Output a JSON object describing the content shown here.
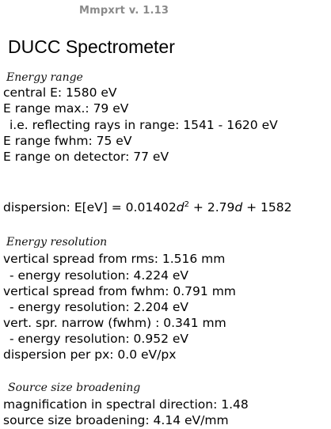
{
  "app": {
    "title": "Mmpxrt v. 1.13"
  },
  "page": {
    "title": "DUCC Spectrometer"
  },
  "energy_range": {
    "heading": "Energy range",
    "central": "central E:  1580 eV",
    "range_max": "E range max.:  79 eV",
    "reflecting": "i.e. reflecting rays in range:  1541 - 1620 eV",
    "fwhm": "E range fwhm:  75 eV",
    "on_detector": "E range on detector:  77 eV"
  },
  "dispersion": {
    "label": "dispersion: ",
    "lhs": "E[eV] = 0.01402",
    "var1": "d",
    "exp": "2",
    "mid": " + 2.79",
    "var2": "d",
    "tail": " + 1582"
  },
  "energy_resolution": {
    "heading": "Energy resolution",
    "vs_rms": "vertical spread from rms:  1.516 mm",
    "res_rms": "- energy resolution:  4.224 eV",
    "vs_fwhm": "vertical spread from fwhm:  0.791 mm",
    "res_fwhm": "- energy resolution:  2.204 eV",
    "narrow": "vert. spr. narrow (fwhm) :  0.341 mm",
    "res_narrow": "- energy resolution:  0.952 eV",
    "per_px": "dispersion per px:  0.0 eV/px"
  },
  "source_size": {
    "heading": "Source size broadening",
    "magnification": "magnification in spectral direction:  1.48",
    "broadening": "source size broadening:  4.14 eV/mm"
  }
}
